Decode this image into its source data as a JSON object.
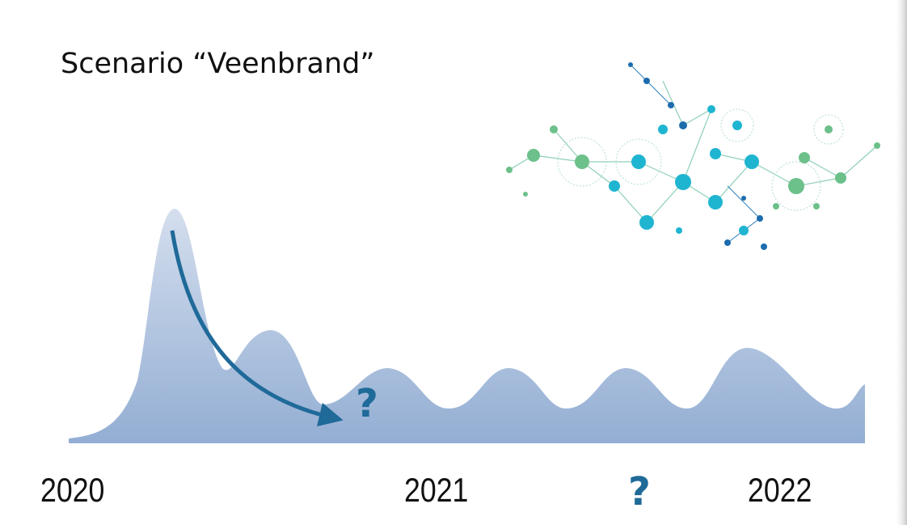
{
  "title": "Scenario “Veenbrand”",
  "curve_annotation": "?",
  "timeline": {
    "labels": [
      "2020",
      "2021",
      "?",
      "2022"
    ]
  }
}
